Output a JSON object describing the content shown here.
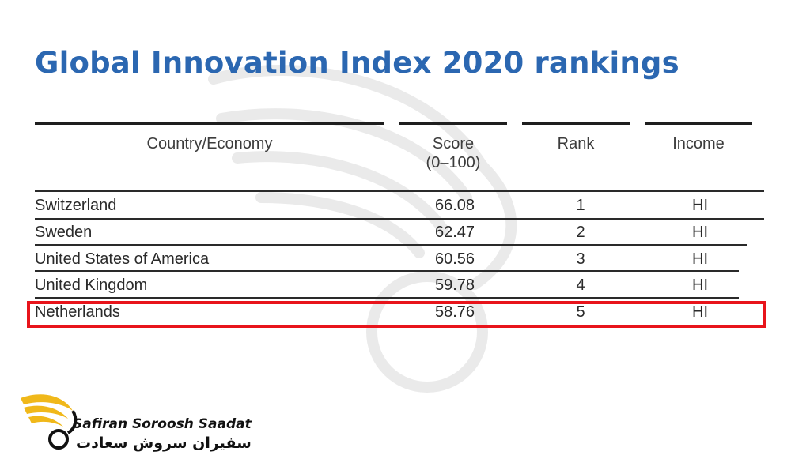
{
  "title": "Global Innovation Index 2020 rankings",
  "table": {
    "headers": {
      "country": "Country/Economy",
      "score_line1": "Score",
      "score_line2": "(0–100)",
      "rank": "Rank",
      "income": "Income"
    },
    "rows": [
      {
        "country": "Switzerland",
        "score": "66.08",
        "rank": "1",
        "income": "HI"
      },
      {
        "country": "Sweden",
        "score": "62.47",
        "rank": "2",
        "income": "HI"
      },
      {
        "country": "United States of America",
        "score": "60.56",
        "rank": "3",
        "income": "HI"
      },
      {
        "country": "United Kingdom",
        "score": "59.78",
        "rank": "4",
        "income": "HI"
      },
      {
        "country": "Netherlands",
        "score": "58.76",
        "rank": "5",
        "income": "HI"
      }
    ],
    "highlighted_row": "Netherlands"
  },
  "brand": {
    "name_en": "Safiran Soroosh Saadat",
    "name_fa": "سفیران سروش سعادت"
  },
  "colors": {
    "title": "#2b67b1",
    "highlight_border": "#e8141b",
    "logo_gold": "#f0b81a"
  }
}
